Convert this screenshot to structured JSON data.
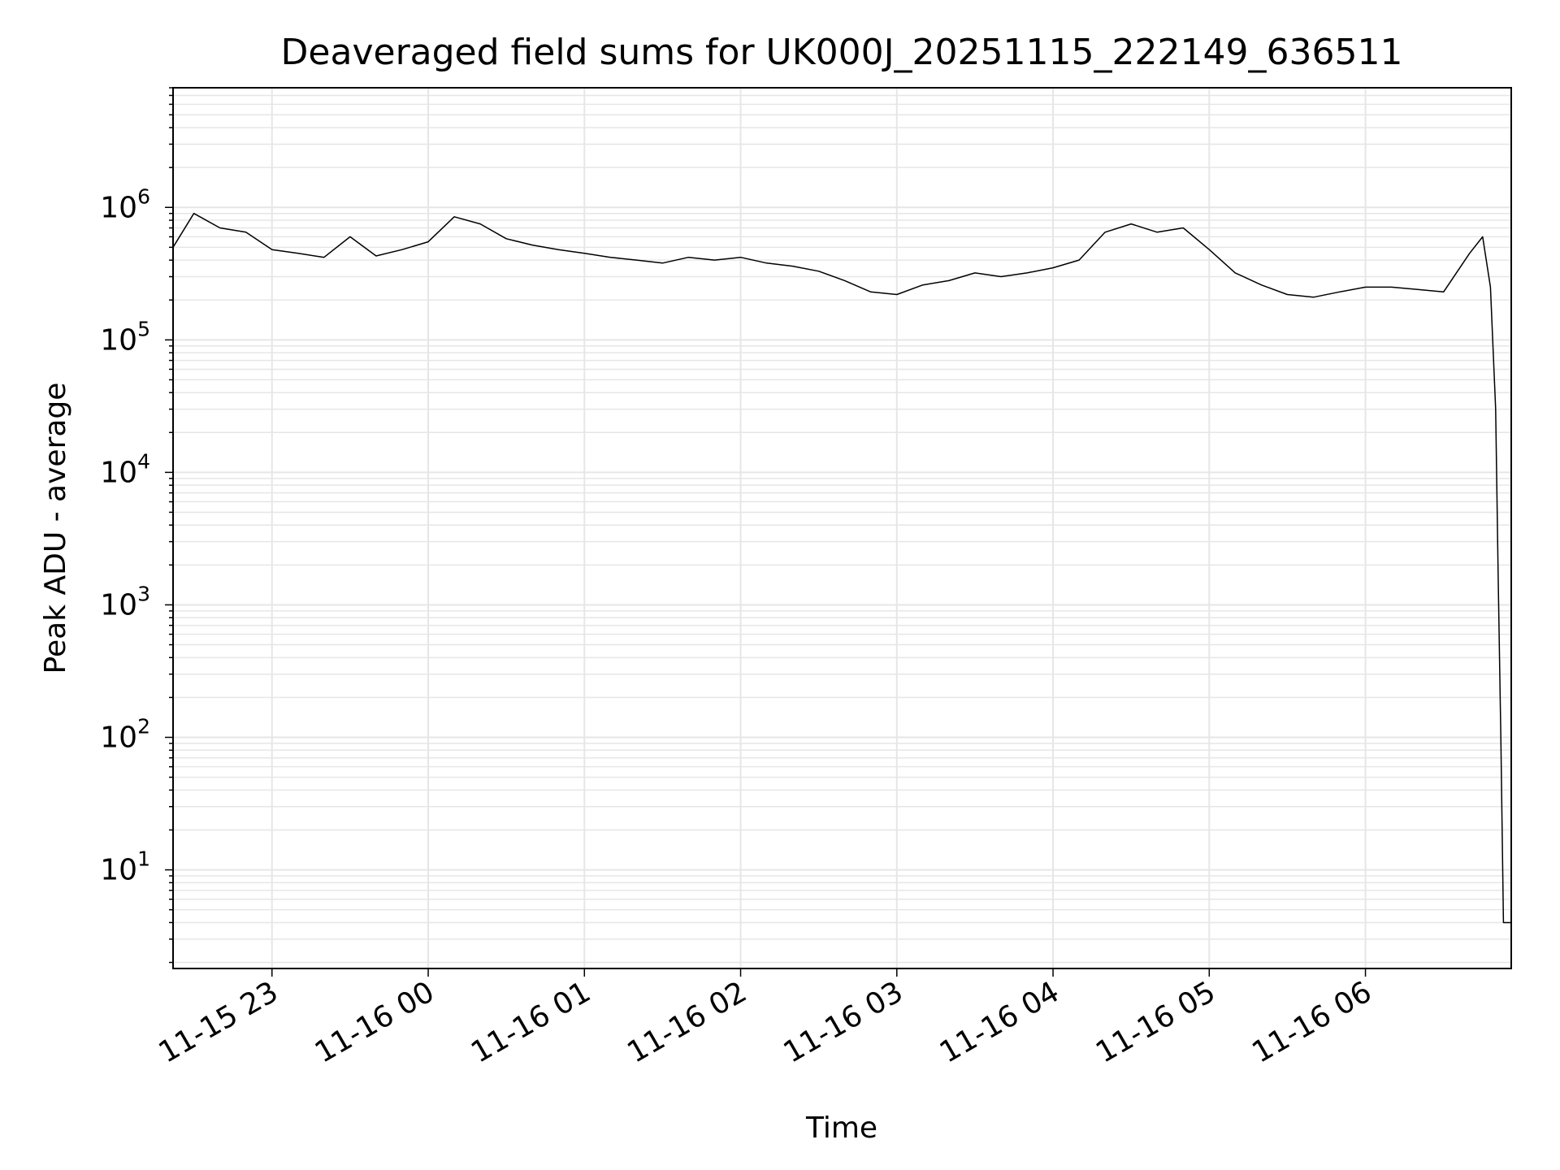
{
  "chart_data": {
    "type": "line",
    "title": "Deaveraged field sums for UK000J_20251115_222149_636511",
    "xlabel": "Time",
    "ylabel": "Peak ADU - average",
    "yscale": "log",
    "ylim": [
      1.8,
      8000000
    ],
    "xlim": [
      "2025-11-15 22:22",
      "2025-11-16 06:56"
    ],
    "grid": true,
    "line_color": "#000000",
    "x_ticks": [
      {
        "value": "2025-11-15 23:00",
        "label": "11-15 23"
      },
      {
        "value": "2025-11-16 00:00",
        "label": "11-16 00"
      },
      {
        "value": "2025-11-16 01:00",
        "label": "11-16 01"
      },
      {
        "value": "2025-11-16 02:00",
        "label": "11-16 02"
      },
      {
        "value": "2025-11-16 03:00",
        "label": "11-16 03"
      },
      {
        "value": "2025-11-16 04:00",
        "label": "11-16 04"
      },
      {
        "value": "2025-11-16 05:00",
        "label": "11-16 05"
      },
      {
        "value": "2025-11-16 06:00",
        "label": "11-16 06"
      }
    ],
    "y_ticks": [
      {
        "value": 10,
        "base": "10",
        "exp": "1"
      },
      {
        "value": 100,
        "base": "10",
        "exp": "2"
      },
      {
        "value": 1000,
        "base": "10",
        "exp": "3"
      },
      {
        "value": 10000,
        "base": "10",
        "exp": "4"
      },
      {
        "value": 100000,
        "base": "10",
        "exp": "5"
      },
      {
        "value": 1000000,
        "base": "10",
        "exp": "6"
      }
    ],
    "series": [
      {
        "x": [
          "2025-11-15 22:22",
          "2025-11-15 22:30",
          "2025-11-15 22:40",
          "2025-11-15 22:50",
          "2025-11-15 23:00",
          "2025-11-15 23:10",
          "2025-11-15 23:20",
          "2025-11-15 23:30",
          "2025-11-15 23:40",
          "2025-11-15 23:50",
          "2025-11-16 00:00",
          "2025-11-16 00:10",
          "2025-11-16 00:20",
          "2025-11-16 00:30",
          "2025-11-16 00:40",
          "2025-11-16 00:50",
          "2025-11-16 01:00",
          "2025-11-16 01:10",
          "2025-11-16 01:20",
          "2025-11-16 01:30",
          "2025-11-16 01:40",
          "2025-11-16 01:50",
          "2025-11-16 02:00",
          "2025-11-16 02:10",
          "2025-11-16 02:20",
          "2025-11-16 02:30",
          "2025-11-16 02:40",
          "2025-11-16 02:50",
          "2025-11-16 03:00",
          "2025-11-16 03:10",
          "2025-11-16 03:20",
          "2025-11-16 03:30",
          "2025-11-16 03:40",
          "2025-11-16 03:50",
          "2025-11-16 04:00",
          "2025-11-16 04:10",
          "2025-11-16 04:20",
          "2025-11-16 04:30",
          "2025-11-16 04:40",
          "2025-11-16 04:50",
          "2025-11-16 05:00",
          "2025-11-16 05:10",
          "2025-11-16 05:20",
          "2025-11-16 05:30",
          "2025-11-16 05:40",
          "2025-11-16 05:50",
          "2025-11-16 06:00",
          "2025-11-16 06:10",
          "2025-11-16 06:20",
          "2025-11-16 06:30",
          "2025-11-16 06:40",
          "2025-11-16 06:45",
          "2025-11-16 06:48",
          "2025-11-16 06:50",
          "2025-11-16 06:51",
          "2025-11-16 06:52",
          "2025-11-16 06:53",
          "2025-11-16 06:56"
        ],
        "values": [
          500000,
          900000,
          700000,
          650000,
          480000,
          450000,
          420000,
          600000,
          430000,
          480000,
          550000,
          850000,
          750000,
          580000,
          520000,
          480000,
          450000,
          420000,
          400000,
          380000,
          420000,
          400000,
          420000,
          380000,
          360000,
          330000,
          280000,
          230000,
          220000,
          260000,
          280000,
          320000,
          300000,
          320000,
          350000,
          400000,
          650000,
          750000,
          650000,
          700000,
          480000,
          320000,
          260000,
          220000,
          210000,
          230000,
          250000,
          250000,
          240000,
          230000,
          450000,
          600000,
          250000,
          30000,
          1500,
          100,
          4,
          4
        ]
      }
    ]
  }
}
